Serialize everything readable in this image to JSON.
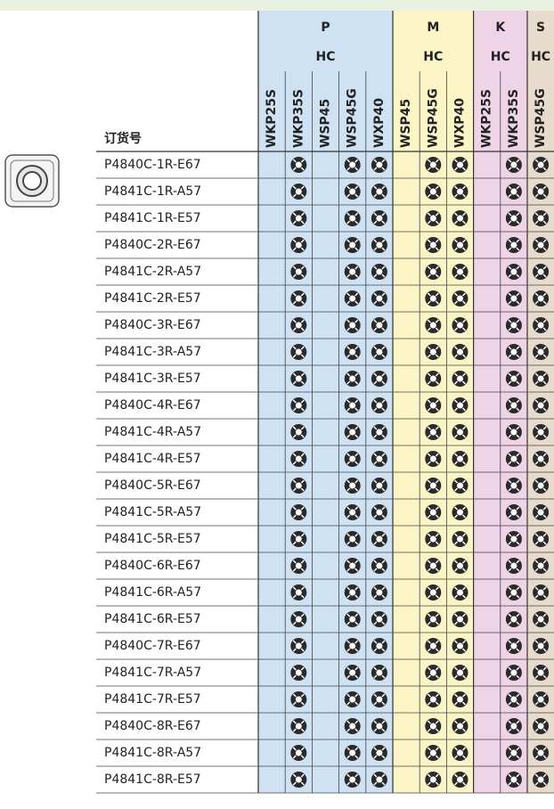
{
  "header": {
    "order_no": "订货号",
    "groups": [
      {
        "name": "P",
        "sub": "HC",
        "grades": [
          "WKP25S",
          "WKP35S",
          "WSP45",
          "WSP45G",
          "WXP40"
        ]
      },
      {
        "name": "M",
        "sub": "HC",
        "grades": [
          "WSP45",
          "WSP45G",
          "WXP40"
        ]
      },
      {
        "name": "K",
        "sub": "HC",
        "grades": [
          "WKP25S",
          "WKP35S"
        ]
      },
      {
        "name": "S",
        "sub": "HC",
        "grades": [
          "WSP45G"
        ]
      }
    ]
  },
  "rows": [
    "P4840C-1R-E67",
    "P4841C-1R-A57",
    "P4841C-1R-E57",
    "P4840C-2R-E67",
    "P4841C-2R-A57",
    "P4841C-2R-E57",
    "P4840C-3R-E67",
    "P4841C-3R-A57",
    "P4841C-3R-E57",
    "P4840C-4R-E67",
    "P4841C-4R-A57",
    "P4841C-4R-E57",
    "P4840C-5R-E67",
    "P4841C-5R-A57",
    "P4841C-5R-E57",
    "P4840C-6R-E67",
    "P4841C-6R-A57",
    "P4841C-6R-E57",
    "P4840C-7R-E67",
    "P4841C-7R-A57",
    "P4841C-7R-E57",
    "P4840C-8R-E67",
    "P4841C-8R-A57",
    "P4841C-8R-E57"
  ]
}
